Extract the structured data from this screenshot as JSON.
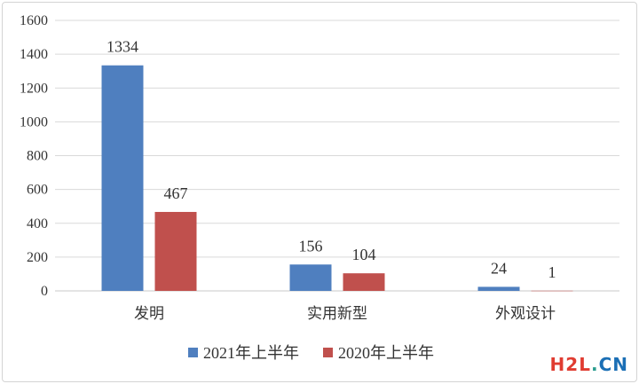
{
  "chart_data": {
    "type": "bar",
    "categories": [
      "发明",
      "实用新型",
      "外观设计"
    ],
    "series": [
      {
        "name": "2021年上半年",
        "values": [
          1334,
          156,
          24
        ],
        "color": "#4f7fbf"
      },
      {
        "name": "2020年上半年",
        "values": [
          467,
          104,
          1
        ],
        "color": "#c0504d"
      }
    ],
    "ylim": [
      0,
      1600
    ],
    "yticks": [
      0,
      200,
      400,
      600,
      800,
      1000,
      1200,
      1400,
      1600
    ],
    "grid": true,
    "legend_position": "bottom"
  },
  "watermark": {
    "parts": [
      {
        "text": "H",
        "color": "#e03c31"
      },
      {
        "text": "2",
        "color": "#e03c31"
      },
      {
        "text": "L",
        "color": "#e03c31"
      },
      {
        "text": ".",
        "color": "#2a9d8f"
      },
      {
        "text": "CN",
        "color": "#1b6fb5"
      }
    ]
  }
}
